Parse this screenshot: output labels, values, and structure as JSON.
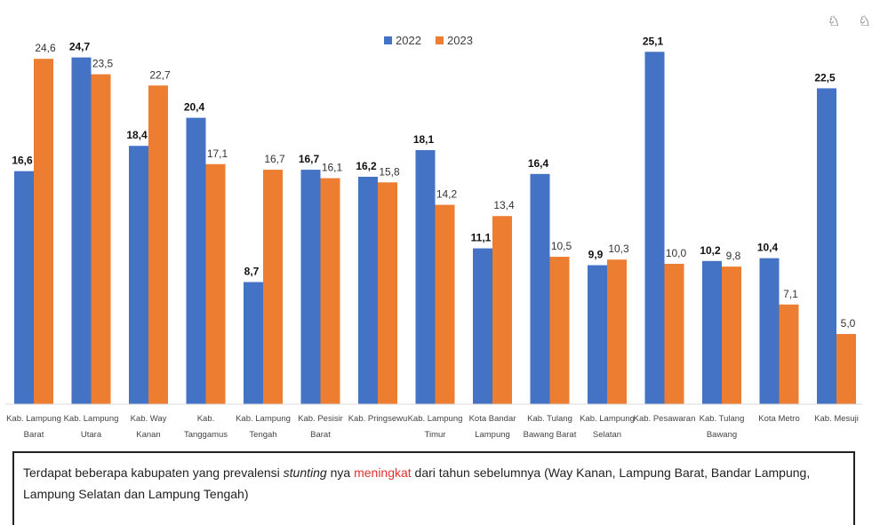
{
  "chart_data": {
    "type": "bar",
    "categories": [
      [
        "Kab. Lampung",
        "Barat"
      ],
      [
        "Kab. Lampung",
        "Utara"
      ],
      [
        "Kab. Way",
        "Kanan"
      ],
      [
        "Kab.",
        "Tanggamus"
      ],
      [
        "Kab. Lampung",
        "Tengah"
      ],
      [
        "Kab. Pesisir",
        "Barat"
      ],
      [
        "Kab. Pringsewu"
      ],
      [
        "Kab. Lampung",
        "Timur"
      ],
      [
        "Kota Bandar",
        "Lampung"
      ],
      [
        "Kab. Tulang",
        "Bawang Barat"
      ],
      [
        "Kab. Lampung",
        "Selatan"
      ],
      [
        "Kab. Pesawaran"
      ],
      [
        "Kab. Tulang",
        "Bawang"
      ],
      [
        "Kota Metro"
      ],
      [
        "Kab. Mesuji"
      ]
    ],
    "series": [
      {
        "name": "2022",
        "color": "#4472c4",
        "values": [
          16.6,
          24.7,
          18.4,
          20.4,
          8.7,
          16.7,
          16.2,
          18.1,
          11.1,
          16.4,
          9.9,
          25.1,
          10.2,
          10.4,
          22.5
        ],
        "labels": [
          "16,6",
          "24,7",
          "18,4",
          "20,4",
          "8,7",
          "16,7",
          "16,2",
          "18,1",
          "11,1",
          "16,4",
          "9,9",
          "25,1",
          "10,2",
          "10,4",
          "22,5"
        ]
      },
      {
        "name": "2023",
        "color": "#ed7d31",
        "values": [
          24.6,
          23.5,
          22.7,
          17.1,
          16.7,
          16.1,
          15.8,
          14.2,
          13.4,
          10.5,
          10.3,
          10.0,
          9.8,
          7.1,
          5.0
        ],
        "labels": [
          "24,6",
          "23,5",
          "22,7",
          "17,1",
          "16,7",
          "16,1",
          "15,8",
          "14,2",
          "13,4",
          "10,5",
          "10,3",
          "10,0",
          "9,8",
          "7,1",
          "5,0"
        ]
      }
    ],
    "ylim": [
      0,
      25.5
    ],
    "grid": false,
    "legend": "top-center"
  },
  "note": {
    "part1": "Terdapat beberapa kabupaten yang prevalensi ",
    "italic": "stunting",
    "part2": " nya ",
    "highlight": "meningkat",
    "part3": " dari tahun sebelumnya (Way Kanan, Lampung Barat, Bandar Lampung, Lampung Selatan dan Lampung Tengah)"
  },
  "corner_icons": "♘ ♘"
}
